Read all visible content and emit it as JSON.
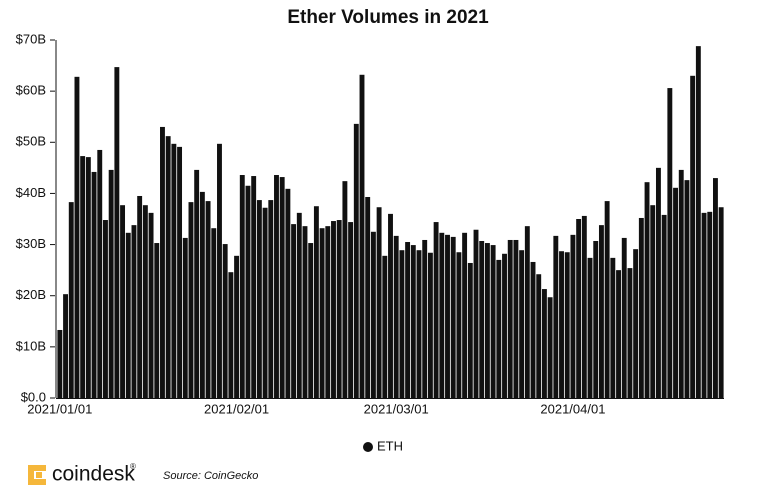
{
  "chart_data": {
    "type": "bar",
    "title": "Ether Volumes in 2021",
    "categories": [
      "2021/01/01",
      null,
      null,
      null,
      null,
      null,
      null,
      null,
      null,
      null,
      null,
      null,
      null,
      null,
      null,
      null,
      null,
      null,
      null,
      null,
      null,
      null,
      null,
      null,
      null,
      null,
      null,
      null,
      null,
      null,
      null,
      "2021/02/01",
      null,
      null,
      null,
      null,
      null,
      null,
      null,
      null,
      null,
      null,
      null,
      null,
      null,
      null,
      null,
      null,
      null,
      null,
      null,
      null,
      null,
      null,
      null,
      null,
      null,
      null,
      null,
      "2021/03/01",
      null,
      null,
      null,
      null,
      null,
      null,
      null,
      null,
      null,
      null,
      null,
      null,
      null,
      null,
      null,
      null,
      null,
      null,
      null,
      null,
      null,
      null,
      null,
      null,
      null,
      null,
      null,
      null,
      null,
      null,
      "2021/04/01",
      null,
      null,
      null,
      null,
      null,
      null,
      null,
      null,
      null,
      null,
      null,
      null,
      null,
      null,
      null,
      null,
      null,
      null,
      null,
      null,
      null,
      null,
      null,
      null,
      null,
      null
    ],
    "series": [
      {
        "name": "ETH",
        "color": "#111111",
        "values": [
          13.3,
          20.3,
          38.3,
          62.8,
          47.3,
          47.1,
          44.2,
          48.5,
          34.8,
          44.6,
          64.7,
          37.7,
          32.3,
          33.8,
          39.5,
          37.7,
          36.2,
          30.3,
          53.0,
          51.2,
          49.7,
          49.1,
          31.3,
          38.3,
          44.6,
          40.3,
          38.5,
          33.2,
          49.7,
          30.1,
          24.6,
          27.8,
          43.6,
          41.5,
          43.4,
          38.7,
          37.2,
          38.7,
          43.6,
          43.2,
          40.9,
          34.0,
          36.2,
          33.6,
          30.3,
          37.5,
          33.2,
          33.6,
          34.6,
          34.8,
          42.4,
          34.4,
          53.6,
          63.2,
          39.3,
          32.5,
          37.3,
          27.8,
          36.0,
          31.7,
          28.9,
          30.5,
          29.9,
          28.9,
          30.9,
          28.4,
          34.4,
          32.3,
          31.9,
          31.5,
          28.5,
          32.3,
          26.4,
          32.9,
          30.7,
          30.3,
          29.9,
          27.0,
          28.2,
          30.9,
          30.9,
          28.9,
          33.6,
          26.6,
          24.2,
          21.3,
          19.7,
          31.7,
          28.7,
          28.5,
          31.9,
          35.0,
          35.6,
          27.4,
          30.7,
          33.8,
          38.5,
          27.4,
          25.0,
          31.3,
          25.4,
          29.1,
          35.2,
          42.2,
          37.7,
          45.0,
          35.8,
          60.6,
          41.1,
          44.6,
          42.6,
          63.0,
          68.8,
          36.2,
          36.4,
          43.0,
          37.3
        ]
      }
    ],
    "ylim": [
      0,
      70
    ],
    "yticks": [
      {
        "value": 0,
        "label": "$0.0"
      },
      {
        "value": 10,
        "label": "$10B"
      },
      {
        "value": 20,
        "label": "$20B"
      },
      {
        "value": 30,
        "label": "$30B"
      },
      {
        "value": 40,
        "label": "$40B"
      },
      {
        "value": 50,
        "label": "$50B"
      },
      {
        "value": 60,
        "label": "$60B"
      },
      {
        "value": 70,
        "label": "$70B"
      }
    ],
    "grid": false,
    "legend": "bottom"
  },
  "footer": {
    "brand": "coindesk",
    "brand_mark": "®",
    "source": "Source: CoinGecko"
  }
}
